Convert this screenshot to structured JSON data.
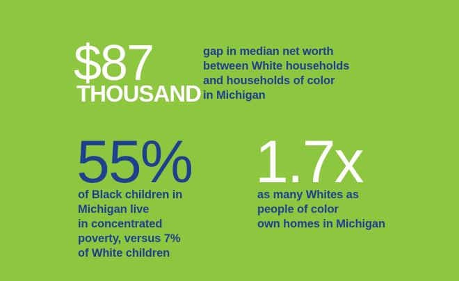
{
  "stats": {
    "net_worth": {
      "value": "$87",
      "unit": "THOUSAND",
      "caption_lines": [
        "gap in median net worth",
        "between White households",
        "and households of color",
        "in Michigan"
      ]
    },
    "poverty": {
      "value": "55%",
      "caption_lines": [
        "of Black children in",
        "Michigan live",
        "in concentrated",
        "poverty, versus 7%",
        "of White children"
      ]
    },
    "homeownership": {
      "value": "1.7x",
      "caption_lines": [
        "as many Whites as",
        "people of color",
        "own homes in Michigan"
      ]
    }
  },
  "colors": {
    "background": "#8dc63f",
    "navy": "#1f3f8f",
    "white": "#ffffff"
  }
}
